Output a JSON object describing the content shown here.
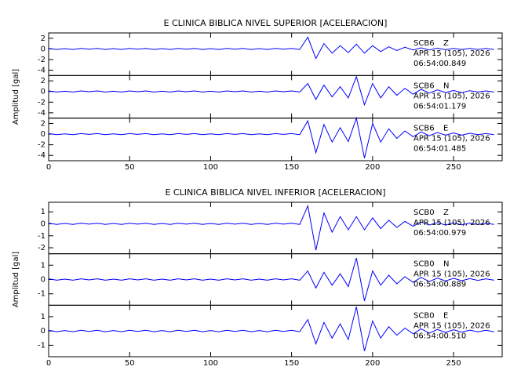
{
  "chart_data": [
    {
      "type": "line",
      "title": "E CLINICA BIBLICA NIVEL SUPERIOR [ACELERACION]",
      "ylabel": "Amplitud [gal]",
      "xlim": [
        0,
        280
      ],
      "xticks": [
        0,
        50,
        100,
        150,
        200,
        250
      ],
      "x": [
        0,
        5,
        10,
        15,
        20,
        25,
        30,
        35,
        40,
        45,
        50,
        55,
        60,
        65,
        70,
        75,
        80,
        85,
        90,
        95,
        100,
        105,
        110,
        115,
        120,
        125,
        130,
        135,
        140,
        145,
        150,
        155,
        160,
        165,
        170,
        175,
        180,
        185,
        190,
        195,
        200,
        205,
        210,
        215,
        220,
        225,
        230,
        235,
        240,
        245,
        250,
        255,
        260,
        265,
        270,
        275
      ],
      "series": [
        {
          "station": "SCB6",
          "name": "Z",
          "date": "APR 15 (105), 2026",
          "time": "06:54:00.849",
          "color": "#0000ff",
          "ylim": [
            -5,
            3
          ],
          "yticks": [
            -4,
            -2,
            0,
            2
          ],
          "values": [
            0.1,
            -0.1,
            0.05,
            -0.1,
            0.1,
            -0.05,
            0.1,
            -0.1,
            0.05,
            -0.1,
            0.1,
            -0.05,
            0.1,
            -0.1,
            0.05,
            -0.1,
            0.1,
            -0.05,
            0.1,
            -0.1,
            0.05,
            -0.1,
            0.1,
            -0.05,
            0.1,
            -0.1,
            0.05,
            -0.1,
            0.1,
            -0.05,
            0.1,
            -0.1,
            2.2,
            -1.8,
            1.0,
            -0.8,
            0.6,
            -0.7,
            0.9,
            -0.8,
            0.6,
            -0.5,
            0.4,
            -0.3,
            0.3,
            -0.2,
            0.2,
            -0.2,
            0.15,
            -0.15,
            0.1,
            -0.1,
            0.1,
            -0.1,
            0.1,
            -0.1
          ]
        },
        {
          "station": "SCB6",
          "name": "N",
          "date": "APR 15 (105), 2026",
          "time": "06:54:01.179",
          "color": "#0000ff",
          "ylim": [
            -5,
            3
          ],
          "yticks": [
            -4,
            -2,
            0,
            2
          ],
          "values": [
            0.1,
            -0.1,
            0.05,
            -0.1,
            0.1,
            -0.05,
            0.1,
            -0.1,
            0.05,
            -0.1,
            0.1,
            -0.05,
            0.1,
            -0.1,
            0.05,
            -0.1,
            0.1,
            -0.05,
            0.1,
            -0.1,
            0.05,
            -0.1,
            0.1,
            -0.05,
            0.1,
            -0.1,
            0.05,
            -0.1,
            0.1,
            -0.05,
            0.1,
            -0.1,
            1.5,
            -1.5,
            1.2,
            -1.0,
            0.9,
            -1.2,
            2.8,
            -2.5,
            1.5,
            -1.2,
            0.9,
            -0.7,
            0.6,
            -0.5,
            0.4,
            -0.3,
            0.3,
            -0.2,
            0.2,
            -0.2,
            0.15,
            -0.1,
            0.1,
            -0.1
          ]
        },
        {
          "station": "SCB6",
          "name": "E",
          "date": "APR 15 (105), 2026",
          "time": "06:54:01.485",
          "color": "#0000ff",
          "ylim": [
            -5,
            3
          ],
          "yticks": [
            -4,
            -2,
            0,
            2
          ],
          "values": [
            0.1,
            -0.1,
            0.05,
            -0.1,
            0.1,
            -0.05,
            0.1,
            -0.1,
            0.05,
            -0.1,
            0.1,
            -0.05,
            0.1,
            -0.1,
            0.05,
            -0.1,
            0.1,
            -0.05,
            0.1,
            -0.1,
            0.05,
            -0.1,
            0.1,
            -0.05,
            0.1,
            -0.1,
            0.05,
            -0.1,
            0.1,
            -0.05,
            0.1,
            -0.1,
            2.5,
            -3.5,
            1.8,
            -1.5,
            1.2,
            -1.4,
            3.0,
            -4.5,
            2.0,
            -1.5,
            1.0,
            -0.8,
            0.6,
            -0.5,
            0.4,
            -0.3,
            0.3,
            -0.2,
            0.2,
            -0.2,
            0.15,
            -0.1,
            0.1,
            -0.1
          ]
        }
      ]
    },
    {
      "type": "line",
      "title": "E CLINICA BIBLICA NIVEL INFERIOR [ACELERACION]",
      "ylabel": "Amplitud [gal]",
      "xlim": [
        0,
        280
      ],
      "xticks": [
        0,
        50,
        100,
        150,
        200,
        250
      ],
      "x": [
        0,
        5,
        10,
        15,
        20,
        25,
        30,
        35,
        40,
        45,
        50,
        55,
        60,
        65,
        70,
        75,
        80,
        85,
        90,
        95,
        100,
        105,
        110,
        115,
        120,
        125,
        130,
        135,
        140,
        145,
        150,
        155,
        160,
        165,
        170,
        175,
        180,
        185,
        190,
        195,
        200,
        205,
        210,
        215,
        220,
        225,
        230,
        235,
        240,
        245,
        250,
        255,
        260,
        265,
        270,
        275
      ],
      "series": [
        {
          "station": "SCB0",
          "name": "Z",
          "date": "APR 15 (105), 2026",
          "time": "06:54:00.979",
          "color": "#0000ff",
          "ylim": [
            -2.5,
            1.8
          ],
          "yticks": [
            -2,
            -1,
            0,
            1
          ],
          "values": [
            0.05,
            -0.05,
            0.03,
            -0.05,
            0.05,
            -0.03,
            0.05,
            -0.05,
            0.03,
            -0.05,
            0.05,
            -0.03,
            0.05,
            -0.05,
            0.03,
            -0.05,
            0.05,
            -0.03,
            0.05,
            -0.05,
            0.03,
            -0.05,
            0.05,
            -0.03,
            0.05,
            -0.05,
            0.03,
            -0.05,
            0.05,
            -0.03,
            0.05,
            -0.05,
            1.5,
            -2.2,
            0.9,
            -0.7,
            0.6,
            -0.5,
            0.6,
            -0.5,
            0.5,
            -0.4,
            0.3,
            -0.3,
            0.2,
            -0.2,
            0.15,
            -0.1,
            0.1,
            -0.1,
            0.08,
            -0.08,
            0.06,
            -0.06,
            0.05,
            -0.05
          ]
        },
        {
          "station": "SCB0",
          "name": "N",
          "date": "APR 15 (105), 2026",
          "time": "06:54:00.889",
          "color": "#0000ff",
          "ylim": [
            -1.8,
            1.8
          ],
          "yticks": [
            -1,
            0,
            1
          ],
          "values": [
            0.05,
            -0.05,
            0.03,
            -0.05,
            0.05,
            -0.03,
            0.05,
            -0.05,
            0.03,
            -0.05,
            0.05,
            -0.03,
            0.05,
            -0.05,
            0.03,
            -0.05,
            0.05,
            -0.03,
            0.05,
            -0.05,
            0.03,
            -0.05,
            0.05,
            -0.03,
            0.05,
            -0.05,
            0.03,
            -0.05,
            0.05,
            -0.03,
            0.05,
            -0.05,
            0.6,
            -0.6,
            0.5,
            -0.4,
            0.4,
            -0.5,
            1.5,
            -1.5,
            0.6,
            -0.4,
            0.3,
            -0.3,
            0.2,
            -0.2,
            0.15,
            -0.15,
            0.1,
            -0.1,
            0.08,
            -0.08,
            0.06,
            -0.06,
            0.05,
            -0.05
          ]
        },
        {
          "station": "SCB0",
          "name": "E",
          "date": "APR 15 (105), 2026",
          "time": "06:54:00.510",
          "color": "#0000ff",
          "ylim": [
            -1.8,
            1.8
          ],
          "yticks": [
            -1,
            0,
            1
          ],
          "values": [
            0.05,
            -0.05,
            0.03,
            -0.05,
            0.05,
            -0.03,
            0.05,
            -0.05,
            0.03,
            -0.05,
            0.05,
            -0.03,
            0.05,
            -0.05,
            0.03,
            -0.05,
            0.05,
            -0.03,
            0.05,
            -0.05,
            0.03,
            -0.05,
            0.05,
            -0.03,
            0.05,
            -0.05,
            0.03,
            -0.05,
            0.05,
            -0.03,
            0.05,
            -0.05,
            0.8,
            -0.9,
            0.6,
            -0.5,
            0.5,
            -0.6,
            1.7,
            -1.4,
            0.7,
            -0.5,
            0.3,
            -0.3,
            0.2,
            -0.2,
            0.15,
            -0.15,
            0.1,
            -0.1,
            0.08,
            -0.08,
            0.06,
            -0.06,
            0.05,
            -0.05
          ]
        }
      ]
    }
  ]
}
